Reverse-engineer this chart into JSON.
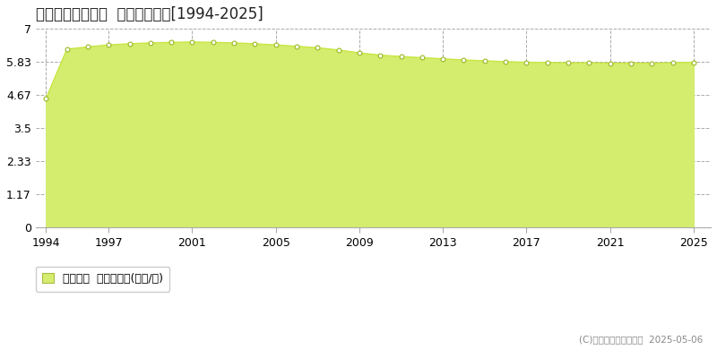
{
  "title": "東諸県郡綾町南俣  公示地価推移[1994-2025]",
  "years": [
    1994,
    1995,
    1996,
    1997,
    1998,
    1999,
    2000,
    2001,
    2002,
    2003,
    2004,
    2005,
    2006,
    2007,
    2008,
    2009,
    2010,
    2011,
    2012,
    2013,
    2014,
    2015,
    2016,
    2017,
    2018,
    2019,
    2020,
    2021,
    2022,
    2023,
    2024,
    2025
  ],
  "values": [
    4.55,
    6.28,
    6.36,
    6.43,
    6.47,
    6.5,
    6.52,
    6.53,
    6.52,
    6.5,
    6.47,
    6.43,
    6.38,
    6.33,
    6.25,
    6.15,
    6.07,
    6.02,
    5.98,
    5.94,
    5.9,
    5.87,
    5.84,
    5.82,
    5.81,
    5.8,
    5.8,
    5.79,
    5.79,
    5.79,
    5.8,
    5.82
  ],
  "line_color": "#c8e642",
  "fill_color": "#d4ed6e",
  "marker_color": "#ffffff",
  "marker_edge_color": "#9ab820",
  "yticks": [
    0,
    1.17,
    2.33,
    3.5,
    4.67,
    5.83,
    7
  ],
  "ytick_labels": [
    "0",
    "1.17",
    "2.33",
    "3.5",
    "4.67",
    "5.83",
    "7"
  ],
  "xticks": [
    1994,
    1997,
    2001,
    2005,
    2009,
    2013,
    2017,
    2021,
    2025
  ],
  "xlim": [
    1993.5,
    2025.8
  ],
  "ylim": [
    0,
    7
  ],
  "grid_color": "#aaaaaa",
  "bg_color": "#ffffff",
  "plot_bg_color": "#ffffff",
  "legend_label": "公示地価  平均坪単価(万円/坪)",
  "copyright_text": "(C)土地価格ドットコム  2025-05-06",
  "title_fontsize": 12,
  "tick_fontsize": 9,
  "legend_fontsize": 9
}
